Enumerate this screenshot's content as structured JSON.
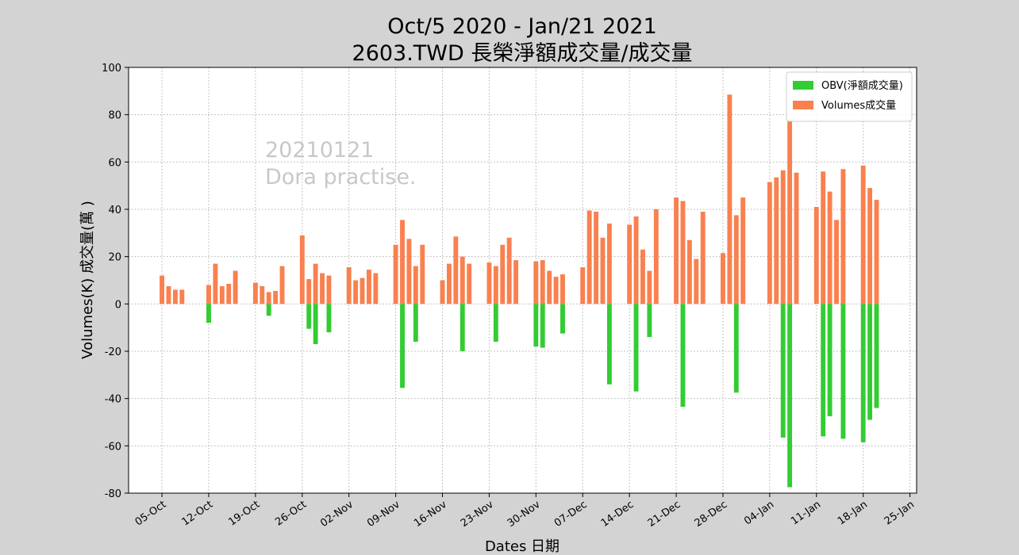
{
  "chart_data": {
    "type": "bar",
    "title": "Oct/5 2020 - Jan/21 2021",
    "subtitle": "2603.TWD 長榮淨額成交量/成交量",
    "x_label": "Dates 日期",
    "y_label": "Volumes(K) 成交量(萬 )",
    "annotations": [
      "20210121",
      "Dora practise."
    ],
    "x": [
      "05-Oct",
      "06-Oct",
      "07-Oct",
      "08-Oct",
      "12-Oct",
      "13-Oct",
      "14-Oct",
      "15-Oct",
      "16-Oct",
      "19-Oct",
      "20-Oct",
      "21-Oct",
      "22-Oct",
      "23-Oct",
      "26-Oct",
      "27-Oct",
      "28-Oct",
      "29-Oct",
      "30-Oct",
      "02-Nov",
      "03-Nov",
      "04-Nov",
      "05-Nov",
      "06-Nov",
      "09-Nov",
      "10-Nov",
      "11-Nov",
      "12-Nov",
      "13-Nov",
      "16-Nov",
      "17-Nov",
      "18-Nov",
      "19-Nov",
      "20-Nov",
      "23-Nov",
      "24-Nov",
      "25-Nov",
      "26-Nov",
      "27-Nov",
      "30-Nov",
      "01-Dec",
      "02-Dec",
      "03-Dec",
      "04-Dec",
      "07-Dec",
      "08-Dec",
      "09-Dec",
      "10-Dec",
      "11-Dec",
      "14-Dec",
      "15-Dec",
      "16-Dec",
      "17-Dec",
      "18-Dec",
      "21-Dec",
      "22-Dec",
      "23-Dec",
      "24-Dec",
      "25-Dec",
      "28-Dec",
      "29-Dec",
      "30-Dec",
      "31-Dec",
      "04-Jan",
      "05-Jan",
      "06-Jan",
      "07-Jan",
      "08-Jan",
      "11-Jan",
      "12-Jan",
      "13-Jan",
      "14-Jan",
      "15-Jan",
      "18-Jan",
      "19-Jan",
      "20-Jan"
    ],
    "series": [
      {
        "name": "OBV(淨額成交量)",
        "color": "#33cc33",
        "values": [
          0,
          0,
          0,
          0,
          -8,
          0,
          0,
          0,
          0,
          0,
          0,
          -5,
          0,
          0,
          0,
          -10.5,
          -17,
          0,
          -12,
          0,
          0,
          0,
          0,
          0,
          0,
          -35.5,
          0,
          -16,
          0,
          0,
          0,
          0,
          -20,
          0,
          0,
          -16,
          0,
          0,
          0,
          -18,
          -18.5,
          0,
          0,
          -12.5,
          0,
          0,
          0,
          0,
          -34,
          0,
          -37,
          0,
          -14,
          0,
          0,
          -43.5,
          0,
          0,
          0,
          0,
          0,
          -37.5,
          0,
          0,
          0,
          -56.5,
          -77.5,
          0,
          0,
          -56,
          -47.5,
          0,
          -57,
          -58.5,
          -49,
          -44
        ]
      },
      {
        "name": "Volumes成交量",
        "color": "#f9804f",
        "values": [
          12,
          7.5,
          6,
          6,
          8,
          17,
          7.5,
          8.5,
          14,
          9,
          7.5,
          5,
          5.5,
          16,
          29,
          10.5,
          17,
          13,
          12,
          15.5,
          10,
          11,
          14.5,
          13,
          25,
          35.5,
          27.5,
          16,
          25,
          10,
          17,
          28.5,
          20,
          17,
          17.5,
          16,
          25,
          28,
          18.5,
          18,
          18.5,
          14,
          11.5,
          12.5,
          15.5,
          39.5,
          39,
          28,
          34,
          33.5,
          37,
          23,
          14,
          40,
          45,
          43.5,
          27,
          19,
          39,
          21.5,
          88.5,
          37.5,
          45,
          51.5,
          53.5,
          56.5,
          77.5,
          55.5,
          41,
          56,
          47.5,
          35.5,
          57,
          58.5,
          49,
          44
        ]
      }
    ],
    "xlim": [
      "30-Sep",
      "26-Jan"
    ],
    "xticks": [
      "05-Oct",
      "12-Oct",
      "19-Oct",
      "26-Oct",
      "02-Nov",
      "09-Nov",
      "16-Nov",
      "23-Nov",
      "30-Nov",
      "07-Dec",
      "14-Dec",
      "21-Dec",
      "28-Dec",
      "04-Jan",
      "11-Jan",
      "18-Jan",
      "25-Jan"
    ],
    "ylim": [
      -80,
      100
    ],
    "yticks": [
      -80,
      -60,
      -40,
      -20,
      0,
      20,
      40,
      60,
      80,
      100
    ],
    "grid": true,
    "legend": "upper right"
  }
}
